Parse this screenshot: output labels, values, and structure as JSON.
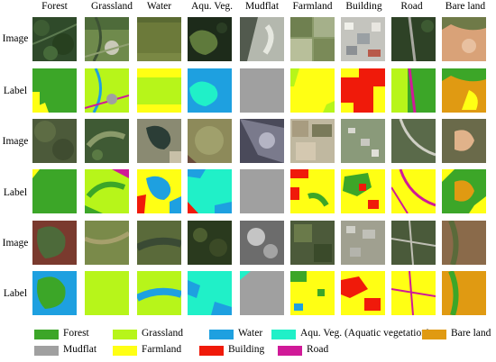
{
  "columns": [
    "Forest",
    "Grassland",
    "Water",
    "Aqu. Veg.",
    "Mudflat",
    "Farmland",
    "Building",
    "Road",
    "Bare land"
  ],
  "row_labels": [
    "Image",
    "Label",
    "Image",
    "Label",
    "Image",
    "Label"
  ],
  "legend": [
    {
      "label": "Forest",
      "color": "#3ca628"
    },
    {
      "label": "Grassland",
      "color": "#b7f51a"
    },
    {
      "label": "Water",
      "color": "#1ea0e0"
    },
    {
      "label": "Aqu. Veg. (Aquatic vegetation)",
      "color": "#20f0c8"
    },
    {
      "label": "Bare land",
      "color": "#e09a12"
    },
    {
      "label": "Mudflat",
      "color": "#a0a0a0"
    },
    {
      "label": "Farmland",
      "color": "#ffff14"
    },
    {
      "label": "Building",
      "color": "#f01a0a"
    },
    {
      "label": "Road",
      "color": "#d01a98"
    }
  ]
}
